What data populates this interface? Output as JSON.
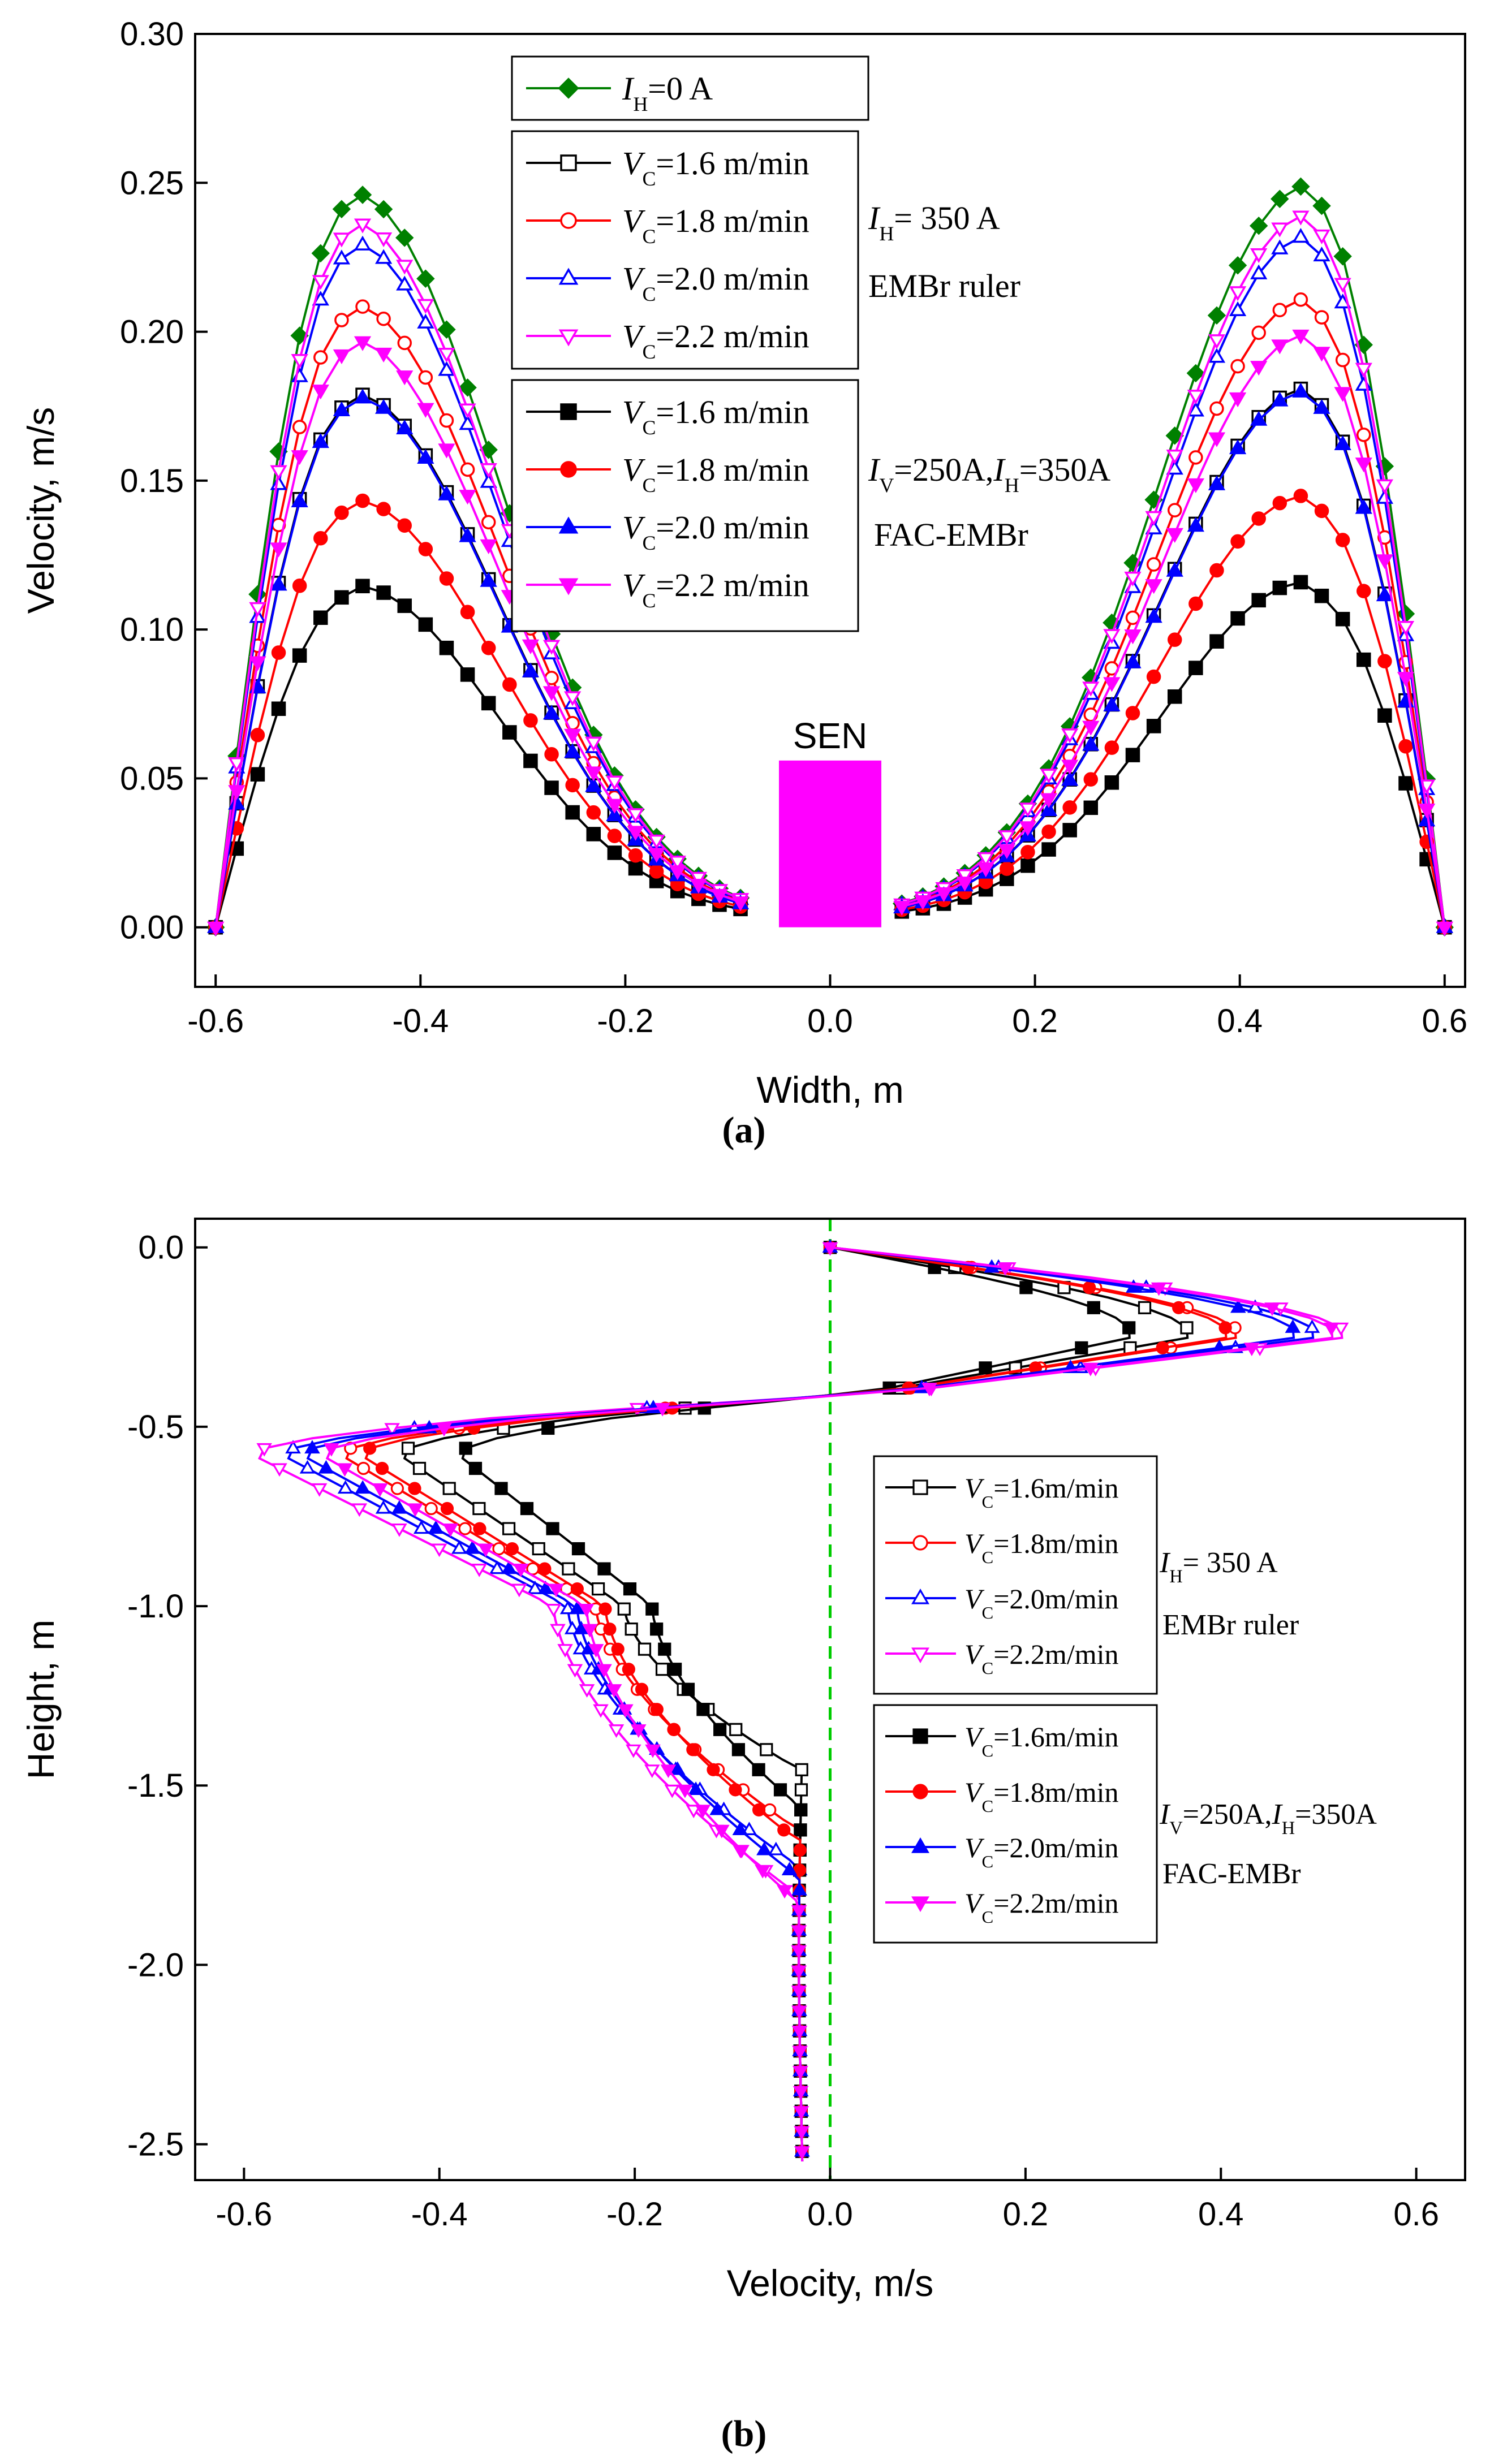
{
  "chart_data": [
    {
      "type": "line",
      "panel_label": "(a)",
      "xlabel": "Width, m",
      "ylabel": "Velocity, m/s",
      "xlim": [
        -0.62,
        0.62
      ],
      "ylim": [
        -0.02,
        0.3
      ],
      "xticks": [
        -0.6,
        -0.4,
        -0.2,
        0.0,
        0.2,
        0.4,
        0.6
      ],
      "xtick_labels": [
        "-0.6",
        "-0.4",
        "-0.2",
        "0.0",
        "0.2",
        "0.4",
        "0.6"
      ],
      "yticks": [
        0.0,
        0.05,
        0.1,
        0.15,
        0.2,
        0.25,
        0.3
      ],
      "ytick_labels": [
        "0.00",
        "0.05",
        "0.10",
        "0.15",
        "0.20",
        "0.25",
        "0.30"
      ],
      "annotation": {
        "text": "SEN",
        "x": [
          -0.05,
          0.05
        ],
        "y": [
          0,
          0.056
        ],
        "color": "#ff00ff"
      },
      "legend_groups": [
        {
          "lines": [
            "I_H=0 A"
          ]
        },
        {
          "lines": [
            "I_H= 350 A",
            "EMBr ruler"
          ]
        },
        {
          "lines": [
            "I_V=250A,I_H=350A",
            "FAC-EMBr"
          ]
        }
      ],
      "series": [
        {
          "name": "I_H=0 A",
          "label": "=0 A",
          "sym": "I",
          "sub": "H",
          "color": "#008000",
          "marker": "diamond",
          "filled": true,
          "peak": 0.246
        },
        {
          "name": "V_C=1.6 m/min (I_H=350 A, EMBr ruler)",
          "label": "=1.6 m/min",
          "sym": "V",
          "sub": "C",
          "color": "#000000",
          "marker": "square",
          "filled": false,
          "peak": 0.178
        },
        {
          "name": "V_C=1.8 m/min (I_H=350 A, EMBr ruler)",
          "label": "=1.8 m/min",
          "sym": "V",
          "sub": "C",
          "color": "#ff0000",
          "marker": "circle",
          "filled": false,
          "peak": 0.208
        },
        {
          "name": "V_C=2.0 m/min (I_H=350 A, EMBr ruler)",
          "label": "=2.0 m/min",
          "sym": "V",
          "sub": "C",
          "color": "#0000ff",
          "marker": "triangle-up",
          "filled": false,
          "peak": 0.229
        },
        {
          "name": "V_C=2.2 m/min (I_H=350 A, EMBr ruler)",
          "label": "=2.2 m/min",
          "sym": "V",
          "sub": "C",
          "color": "#ff00ff",
          "marker": "triangle-down",
          "filled": false,
          "peak": 0.236
        },
        {
          "name": "V_C=1.6 m/min (FAC-EMBr)",
          "label": "=1.6 m/min",
          "sym": "V",
          "sub": "C",
          "color": "#000000",
          "marker": "square",
          "filled": true,
          "peak": 0.113
        },
        {
          "name": "V_C=1.8 m/min (FAC-EMBr)",
          "label": "=1.8 m/min",
          "sym": "V",
          "sub": "C",
          "color": "#ff0000",
          "marker": "circle",
          "filled": true,
          "peak": 0.142
        },
        {
          "name": "V_C=2.0 m/min (FAC-EMBr)",
          "label": "=2.0 m/min",
          "sym": "V",
          "sub": "C",
          "color": "#0000ff",
          "marker": "triangle-up",
          "filled": true,
          "peak": 0.177
        },
        {
          "name": "V_C=2.2 m/min (FAC-EMBr)",
          "label": "=2.2 m/min",
          "sym": "V",
          "sub": "C",
          "color": "#ff00ff",
          "marker": "triangle-down",
          "filled": true,
          "peak": 0.196
        }
      ]
    },
    {
      "type": "line",
      "panel_label": "(b)",
      "xlabel": "Velocity, m/s",
      "ylabel": "Height, m",
      "xlim": [
        -0.65,
        0.65
      ],
      "ylim": [
        -2.6,
        0.08
      ],
      "xticks": [
        -0.6,
        -0.4,
        -0.2,
        0.0,
        0.2,
        0.4,
        0.6
      ],
      "xtick_labels": [
        "-0.6",
        "-0.4",
        "-0.2",
        "0.0",
        "0.2",
        "0.4",
        "0.6"
      ],
      "yticks": [
        0.0,
        -0.5,
        -1.0,
        -1.5,
        -2.0,
        -2.5
      ],
      "ytick_labels": [
        "0.0",
        "-0.5",
        "-1.0",
        "-1.5",
        "-2.0",
        "-2.5"
      ],
      "reference_line": {
        "x": 0,
        "style": "dashed",
        "color": "#00cc00"
      },
      "legend_groups": [
        {
          "lines": [
            "I_H= 350 A",
            "EMBr ruler"
          ]
        },
        {
          "lines": [
            "I_V=250A,I_H=350A",
            "FAC-EMBr"
          ]
        }
      ],
      "series": [
        {
          "name": "V_C=1.6m/min (I_H=350 A, EMBr ruler)",
          "label": "=1.6m/min",
          "sym": "V",
          "sub": "C",
          "color": "#000000",
          "marker": "square",
          "filled": false,
          "pos_peak": 0.37,
          "neg_peak": -0.44,
          "transition_y": -1.45
        },
        {
          "name": "V_C=1.8m/min (I_H=350 A, EMBr ruler)",
          "label": "=1.8m/min",
          "sym": "V",
          "sub": "C",
          "color": "#ff0000",
          "marker": "circle",
          "filled": false,
          "pos_peak": 0.42,
          "neg_peak": -0.5,
          "transition_y": -1.62
        },
        {
          "name": "V_C=2.0m/min (I_H=350 A, EMBr ruler)",
          "label": "=2.0m/min",
          "sym": "V",
          "sub": "C",
          "color": "#0000ff",
          "marker": "triangle-up",
          "filled": false,
          "pos_peak": 0.5,
          "neg_peak": -0.56,
          "transition_y": -1.72
        },
        {
          "name": "V_C=2.2m/min (I_H=350 A, EMBr ruler)",
          "label": "=2.2m/min",
          "sym": "V",
          "sub": "C",
          "color": "#ff00ff",
          "marker": "triangle-down",
          "filled": false,
          "pos_peak": 0.53,
          "neg_peak": -0.59,
          "transition_y": -1.8
        },
        {
          "name": "V_C=1.6m/min (FAC-EMBr)",
          "label": "=1.6m/min",
          "sym": "V",
          "sub": "C",
          "color": "#000000",
          "marker": "square",
          "filled": true,
          "pos_peak": 0.31,
          "neg_peak": -0.38,
          "transition_y": -1.55
        },
        {
          "name": "V_C=1.8m/min (FAC-EMBr)",
          "label": "=1.8m/min",
          "sym": "V",
          "sub": "C",
          "color": "#ff0000",
          "marker": "circle",
          "filled": true,
          "pos_peak": 0.41,
          "neg_peak": -0.48,
          "transition_y": -1.65
        },
        {
          "name": "V_C=2.0m/min (FAC-EMBr)",
          "label": "=2.0m/min",
          "sym": "V",
          "sub": "C",
          "color": "#0000ff",
          "marker": "triangle-up",
          "filled": true,
          "pos_peak": 0.48,
          "neg_peak": -0.54,
          "transition_y": -1.75
        },
        {
          "name": "V_C=2.2m/min (FAC-EMBr)",
          "label": "=2.2m/min",
          "sym": "V",
          "sub": "C",
          "color": "#ff00ff",
          "marker": "triangle-down",
          "filled": true,
          "pos_peak": 0.52,
          "neg_peak": -0.52,
          "transition_y": -1.82
        }
      ]
    }
  ]
}
